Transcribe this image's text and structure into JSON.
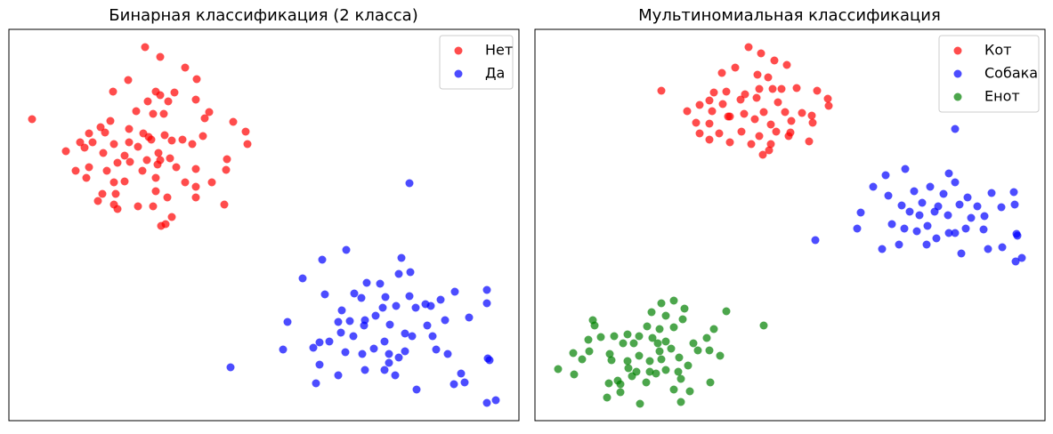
{
  "chart_data": [
    {
      "type": "scatter",
      "title": "Бинарная классификация (2 класса)",
      "xlim": [
        0,
        573
      ],
      "ylim": [
        0,
        440
      ],
      "legend": "upper right",
      "series": [
        {
          "name": "Нет",
          "color": "#ff0000",
          "x": [
            153,
            170,
            198,
            211,
            134,
            117,
            165,
            186,
            170,
            210,
            156,
            179,
            225,
            143,
            26,
            114,
            162,
            174,
            220,
            252,
            103,
            135,
            151,
            157,
            175,
            195,
            218,
            266,
            90,
            108,
            80,
            94,
            118,
            135,
            160,
            183,
            206,
            268,
            64,
            85,
            106,
            145,
            168,
            130,
            122,
            136,
            155,
            170,
            181,
            245,
            75,
            90,
            110,
            150,
            167,
            188,
            210,
            244,
            87,
            118,
            130,
            165,
            198,
            228,
            210,
            105,
            120,
            165,
            178,
            210,
            100,
            118,
            145,
            162,
            242,
            122,
            183,
            176,
            171
          ],
          "values": [
            420,
            409,
            397,
            384,
            383,
            370,
            370,
            369,
            366,
            361,
            359,
            359,
            347,
            348,
            339,
            337,
            345,
            345,
            340,
            336,
            330,
            328,
            323,
            319,
            321,
            316,
            320,
            325,
            323,
            324,
            313,
            313,
            311,
            313,
            316,
            315,
            311,
            311,
            303,
            307,
            301,
            308,
            301,
            298,
            290,
            291,
            293,
            293,
            295,
            294,
            281,
            285,
            281,
            281,
            288,
            285,
            283,
            282,
            273,
            268,
            269,
            273,
            268,
            268,
            263,
            255,
            255,
            258,
            251,
            251,
            247,
            243,
            241,
            241,
            243,
            238,
            229,
            221,
            219
          ]
        },
        {
          "name": "Да",
          "color": "#0000ff",
          "x": [
            450,
            379,
            352,
            441,
            451,
            438,
            330,
            402,
            417,
            388,
            355,
            396,
            423,
            450,
            468,
            485,
            501,
            537,
            537,
            374,
            420,
            435,
            457,
            474,
            400,
            412,
            383,
            370,
            313,
            490,
            517,
            399,
            428,
            445,
            470,
            373,
            387,
            360,
            349,
            422,
            453,
            476,
            342,
            308,
            378,
            397,
            410,
            427,
            445,
            480,
            493,
            427,
            438,
            349,
            538,
            540,
            422,
            508,
            370,
            400,
            249,
            345,
            458,
            500,
            512,
            537,
            547,
            434
          ],
          "values": [
            267,
            192,
            181,
            183,
            167,
            165,
            160,
            155,
            154,
            143,
            142,
            138,
            139,
            140,
            131,
            136,
            145,
            147,
            132,
            124,
            127,
            129,
            127,
            129,
            113,
            118,
            112,
            111,
            111,
            113,
            116,
            107,
            108,
            98,
            107,
            99,
            95,
            89,
            88,
            89,
            95,
            95,
            82,
            80,
            77,
            75,
            81,
            75,
            78,
            80,
            75,
            65,
            71,
            63,
            70,
            68,
            57,
            53,
            51,
            57,
            60,
            42,
            35,
            41,
            43,
            20,
            23,
            51
          ]
        }
      ]
    },
    {
      "type": "scatter",
      "title": "Мультиномиальная классификация",
      "xlim": [
        0,
        573
      ],
      "ylim": [
        0,
        440
      ],
      "legend": "upper right",
      "series": [
        {
          "name": "Кот",
          "color": "#ff0000",
          "x": [
            240,
            254,
            225,
            269,
            283,
            210,
            250,
            262,
            142,
            201,
            215,
            236,
            252,
            267,
            277,
            294,
            317,
            185,
            196,
            211,
            231,
            249,
            273,
            329,
            171,
            199,
            217,
            235,
            257,
            281,
            300,
            311,
            330,
            181,
            196,
            219,
            247,
            265,
            288,
            312,
            185,
            207,
            232,
            252,
            271,
            287,
            196,
            219,
            243,
            265,
            285,
            308,
            256,
            263
          ],
          "values": [
            420,
            413,
            397,
            405,
            400,
            391,
            389,
            386,
            371,
            369,
            370,
            367,
            373,
            373,
            373,
            374,
            371,
            355,
            360,
            356,
            361,
            363,
            358,
            362,
            348,
            348,
            342,
            345,
            347,
            347,
            346,
            343,
            354,
            335,
            334,
            342,
            339,
            333,
            337,
            335,
            323,
            323,
            325,
            320,
            325,
            324,
            316,
            313,
            311,
            311,
            320,
            314,
            299,
            304
          ]
        },
        {
          "name": "Собака",
          "color": "#0000ff",
          "x": [
            472,
            465,
            416,
            394,
            380,
            444,
            472,
            513,
            538,
            426,
            459,
            486,
            397,
            412,
            435,
            453,
            477,
            497,
            524,
            366,
            421,
            432,
            449,
            464,
            490,
            505,
            539,
            401,
            415,
            441,
            465,
            484,
            504,
            362,
            429,
            451,
            472,
            315,
            409,
            440,
            509,
            541,
            542,
            390,
            479,
            540,
            547,
            525
          ],
          "values": [
            328,
            278,
            283,
            276,
            263,
            263,
            268,
            256,
            257,
            258,
            255,
            251,
            253,
            242,
            245,
            241,
            243,
            241,
            240,
            234,
            235,
            231,
            235,
            231,
            228,
            230,
            243,
            221,
            216,
            219,
            211,
            216,
            215,
            216,
            213,
            205,
            211,
            203,
            198,
            198,
            193,
            210,
            208,
            193,
            188,
            179,
            183,
            195
          ]
        },
        {
          "name": "Енот",
          "color": "#008000",
          "x": [
            156,
            142,
            168,
            131,
            147,
            166,
            215,
            257,
            65,
            67,
            126,
            140,
            156,
            201,
            89,
            104,
            117,
            132,
            147,
            178,
            193,
            60,
            74,
            43,
            61,
            84,
            99,
            111,
            138,
            140,
            153,
            183,
            196,
            208,
            53,
            86,
            104,
            117,
            129,
            142,
            162,
            172,
            26,
            105,
            114,
            129,
            147,
            161,
            44,
            93,
            109,
            136,
            164,
            197,
            96,
            83,
            125,
            156,
            174,
            96,
            81,
            164,
            118
          ],
          "values": [
            135,
            132,
            126,
            122,
            118,
            114,
            123,
            107,
            113,
            107,
            106,
            103,
            105,
            103,
            95,
            97,
            95,
            93,
            89,
            87,
            93,
            91,
            94,
            76,
            78,
            75,
            87,
            87,
            87,
            78,
            81,
            79,
            79,
            73,
            69,
            68,
            67,
            73,
            67,
            69,
            71,
            62,
            58,
            59,
            55,
            55,
            57,
            55,
            52,
            45,
            50,
            53,
            47,
            43,
            41,
            42,
            43,
            35,
            33,
            32,
            26,
            21,
            19
          ]
        }
      ]
    }
  ]
}
